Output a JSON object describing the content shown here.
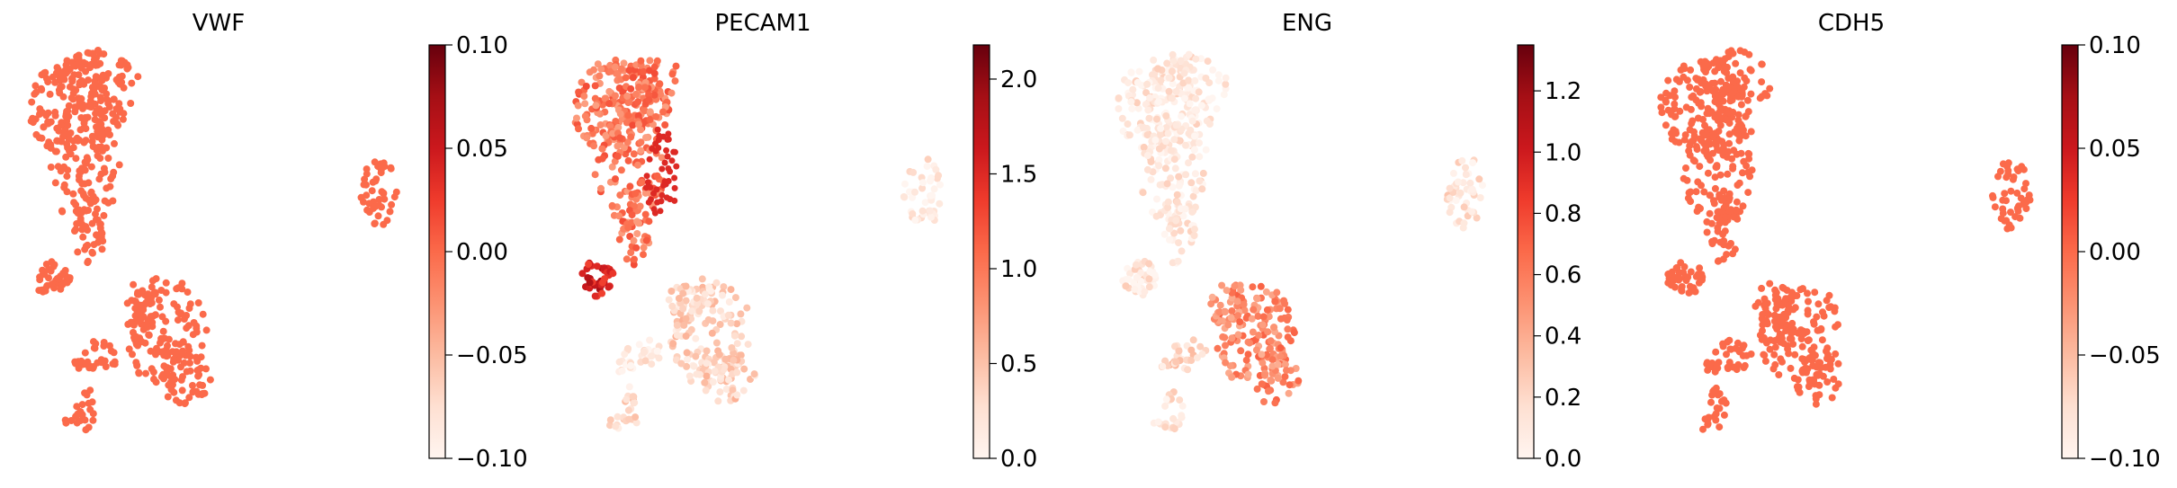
{
  "chart_data": [
    {
      "type": "scatter",
      "title": "VWF",
      "colormap": "Reds",
      "colorbar": {
        "min": -0.1,
        "max": 0.1,
        "ticks": [
          {
            "value": 0.1,
            "label": "0.10"
          },
          {
            "value": 0.05,
            "label": "0.05"
          },
          {
            "value": 0.0,
            "label": "0.00"
          },
          {
            "value": -0.05,
            "label": "−0.05"
          },
          {
            "value": -0.1,
            "label": "−0.10"
          }
        ]
      },
      "cluster_levels": {
        "main_upper": 0.0,
        "left_blob": 0.0,
        "lower_right": 0.0,
        "lower_small": 0.0,
        "bottom_tail": 0.0,
        "right_island": 0.0
      },
      "hotspot": null
    },
    {
      "type": "scatter",
      "title": "PECAM1",
      "colormap": "Reds",
      "colorbar": {
        "min": 0.0,
        "max": 2.18,
        "ticks": [
          {
            "value": 2.0,
            "label": "2.0"
          },
          {
            "value": 1.5,
            "label": "1.5"
          },
          {
            "value": 1.0,
            "label": "1.0"
          },
          {
            "value": 0.5,
            "label": "0.5"
          },
          {
            "value": 0.0,
            "label": "0.0"
          }
        ]
      },
      "cluster_levels": {
        "main_upper": 1.0,
        "left_blob": 1.6,
        "lower_right": 0.35,
        "lower_small": 0.15,
        "bottom_tail": 0.3,
        "right_island": 0.12
      },
      "hotspot": {
        "cluster": "main_right_edge",
        "value": 1.5
      }
    },
    {
      "type": "scatter",
      "title": "ENG",
      "colormap": "Reds",
      "colorbar": {
        "min": 0.0,
        "max": 1.35,
        "ticks": [
          {
            "value": 1.2,
            "label": "1.2"
          },
          {
            "value": 1.0,
            "label": "1.0"
          },
          {
            "value": 0.8,
            "label": "0.8"
          },
          {
            "value": 0.6,
            "label": "0.6"
          },
          {
            "value": 0.4,
            "label": "0.4"
          },
          {
            "value": 0.2,
            "label": "0.2"
          },
          {
            "value": 0.0,
            "label": "0.0"
          }
        ]
      },
      "cluster_levels": {
        "main_upper": 0.08,
        "left_blob": 0.12,
        "lower_right": 0.55,
        "lower_small": 0.2,
        "bottom_tail": 0.1,
        "right_island": 0.15
      },
      "hotspot": null
    },
    {
      "type": "scatter",
      "title": "CDH5",
      "colormap": "Reds",
      "colorbar": {
        "min": -0.1,
        "max": 0.1,
        "ticks": [
          {
            "value": 0.1,
            "label": "0.10"
          },
          {
            "value": 0.05,
            "label": "0.05"
          },
          {
            "value": 0.0,
            "label": "0.00"
          },
          {
            "value": -0.05,
            "label": "−0.05"
          },
          {
            "value": -0.1,
            "label": "−0.10"
          }
        ]
      },
      "cluster_levels": {
        "main_upper": 0.0,
        "left_blob": 0.0,
        "lower_right": 0.0,
        "lower_small": 0.0,
        "bottom_tail": 0.0,
        "right_island": 0.0
      },
      "hotspot": null
    }
  ]
}
